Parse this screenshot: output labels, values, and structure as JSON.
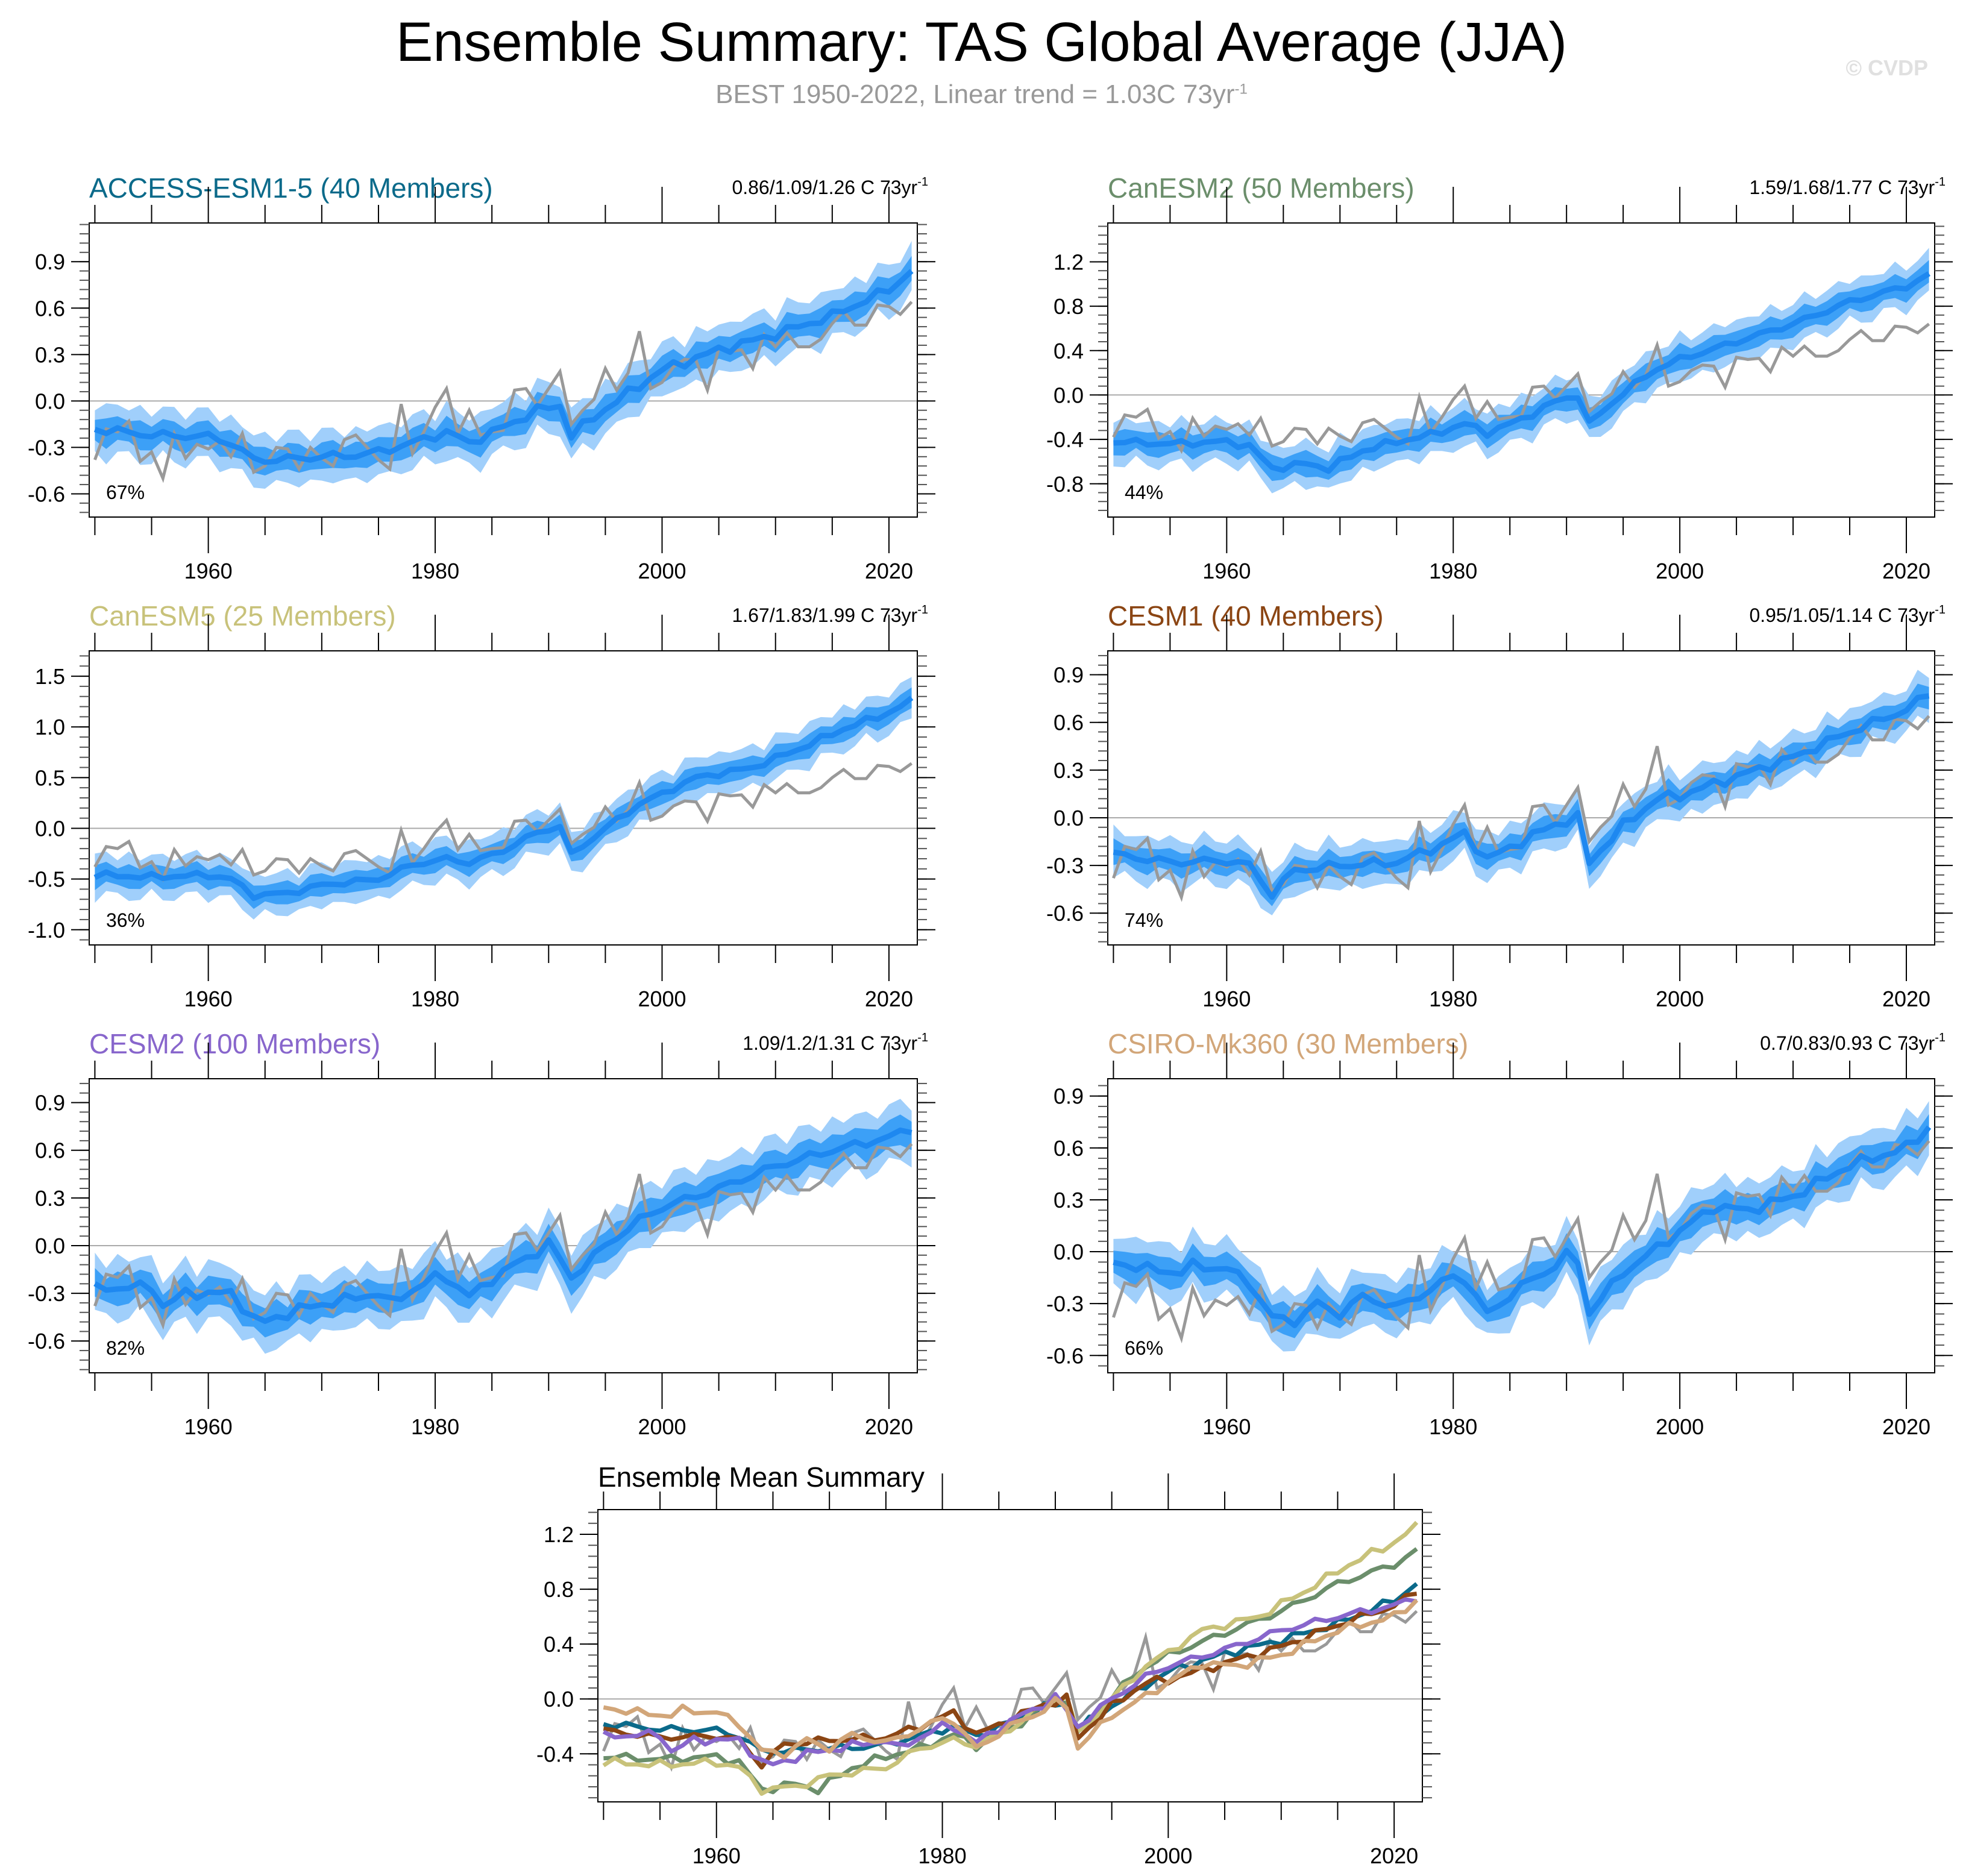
{
  "title": "Ensemble Summary: TAS Global Average (JJA)",
  "subtitle": "BEST 1950-2022, Linear trend = 1.03C 73yr",
  "subtitle_sup": "-1",
  "copyright": "© CVDP",
  "colors": {
    "band_outer": "#a0cffb",
    "band_inner": "#3ca0f7",
    "mean": "#1e88f0",
    "obs": "#999999",
    "zero_line": "#aaaaaa"
  },
  "chart_data": [
    {
      "type": "area",
      "id": "access",
      "title": "ACCESS-ESM1-5 (40 Members)",
      "title_color": "#0b6a8a",
      "trend_label": "0.86/1.09/1.26 C 73yr",
      "trend_sup": "-1",
      "percent_label": "67%",
      "xlim": [
        1949.5,
        2022.5
      ],
      "ylim": [
        -0.75,
        1.15
      ],
      "yticks": [
        -0.6,
        -0.3,
        0.0,
        0.3,
        0.6,
        0.9
      ],
      "ytick_labels": [
        "-0.6",
        "-0.3",
        "0.0",
        "0.3",
        "0.6",
        "0.9"
      ],
      "xticks": [
        1960,
        1980,
        2000,
        2020
      ],
      "mean_keypoints": [
        [
          1950,
          -0.18
        ],
        [
          1955,
          -0.22
        ],
        [
          1960,
          -0.23
        ],
        [
          1962,
          -0.27
        ],
        [
          1964,
          -0.38
        ],
        [
          1966,
          -0.38
        ],
        [
          1970,
          -0.36
        ],
        [
          1973,
          -0.35
        ],
        [
          1975,
          -0.33
        ],
        [
          1978,
          -0.27
        ],
        [
          1981,
          -0.2
        ],
        [
          1983,
          -0.27
        ],
        [
          1986,
          -0.17
        ],
        [
          1989,
          -0.06
        ],
        [
          1991,
          -0.03
        ],
        [
          1992,
          -0.22
        ],
        [
          1995,
          -0.05
        ],
        [
          1998,
          0.1
        ],
        [
          2000,
          0.2
        ],
        [
          2005,
          0.33
        ],
        [
          2010,
          0.43
        ],
        [
          2015,
          0.55
        ],
        [
          2020,
          0.72
        ],
        [
          2022,
          0.84
        ]
      ],
      "inner_halfwidth": 0.08,
      "outer_halfwidth": 0.16
    },
    {
      "type": "area",
      "id": "canesm2",
      "title": "CanESM2 (50 Members)",
      "title_color": "#6b8e6b",
      "trend_label": "1.59/1.68/1.77 C 73yr",
      "trend_sup": "-1",
      "percent_label": "44%",
      "xlim": [
        1949.5,
        2022.5
      ],
      "ylim": [
        -1.1,
        1.55
      ],
      "yticks": [
        -0.8,
        -0.4,
        0.0,
        0.4,
        0.8,
        1.2
      ],
      "ytick_labels": [
        "-0.8",
        "-0.4",
        "0.0",
        "0.4",
        "0.8",
        "1.2"
      ],
      "xticks": [
        1960,
        1980,
        2000,
        2020
      ],
      "mean_keypoints": [
        [
          1950,
          -0.42
        ],
        [
          1955,
          -0.44
        ],
        [
          1960,
          -0.42
        ],
        [
          1962,
          -0.46
        ],
        [
          1964,
          -0.66
        ],
        [
          1967,
          -0.62
        ],
        [
          1969,
          -0.66
        ],
        [
          1972,
          -0.5
        ],
        [
          1975,
          -0.42
        ],
        [
          1978,
          -0.36
        ],
        [
          1981,
          -0.26
        ],
        [
          1983,
          -0.34
        ],
        [
          1986,
          -0.22
        ],
        [
          1989,
          -0.06
        ],
        [
          1991,
          0.0
        ],
        [
          1992,
          -0.26
        ],
        [
          1995,
          0.02
        ],
        [
          1998,
          0.24
        ],
        [
          2000,
          0.32
        ],
        [
          2005,
          0.48
        ],
        [
          2010,
          0.64
        ],
        [
          2015,
          0.84
        ],
        [
          2020,
          0.98
        ],
        [
          2022,
          1.08
        ]
      ],
      "inner_halfwidth": 0.1,
      "outer_halfwidth": 0.19
    },
    {
      "type": "area",
      "id": "canesm5",
      "title": "CanESM5 (25 Members)",
      "title_color": "#c8c27a",
      "trend_label": "1.67/1.83/1.99 C 73yr",
      "trend_sup": "-1",
      "percent_label": "36%",
      "xlim": [
        1949.5,
        2022.5
      ],
      "ylim": [
        -1.15,
        1.75
      ],
      "yticks": [
        -1.0,
        -0.5,
        0.0,
        0.5,
        1.0,
        1.5
      ],
      "ytick_labels": [
        "-1.0",
        "-0.5",
        "0.0",
        "0.5",
        "1.0",
        "1.5"
      ],
      "xticks": [
        1960,
        1980,
        2000,
        2020
      ],
      "mean_keypoints": [
        [
          1950,
          -0.46
        ],
        [
          1955,
          -0.48
        ],
        [
          1960,
          -0.46
        ],
        [
          1962,
          -0.5
        ],
        [
          1964,
          -0.66
        ],
        [
          1967,
          -0.64
        ],
        [
          1970,
          -0.56
        ],
        [
          1975,
          -0.5
        ],
        [
          1978,
          -0.36
        ],
        [
          1981,
          -0.3
        ],
        [
          1983,
          -0.34
        ],
        [
          1986,
          -0.22
        ],
        [
          1989,
          -0.04
        ],
        [
          1991,
          0.02
        ],
        [
          1992,
          -0.26
        ],
        [
          1995,
          0.0
        ],
        [
          1998,
          0.24
        ],
        [
          2000,
          0.34
        ],
        [
          2003,
          0.5
        ],
        [
          2008,
          0.6
        ],
        [
          2012,
          0.78
        ],
        [
          2016,
          0.98
        ],
        [
          2020,
          1.14
        ],
        [
          2022,
          1.26
        ]
      ],
      "inner_halfwidth": 0.1,
      "outer_halfwidth": 0.2
    },
    {
      "type": "area",
      "id": "cesm1",
      "title": "CESM1 (40 Members)",
      "title_color": "#8b4513",
      "trend_label": "0.95/1.05/1.14 C 73yr",
      "trend_sup": "-1",
      "percent_label": "74%",
      "xlim": [
        1949.5,
        2022.5
      ],
      "ylim": [
        -0.8,
        1.05
      ],
      "yticks": [
        -0.6,
        -0.3,
        0.0,
        0.3,
        0.6,
        0.9
      ],
      "ytick_labels": [
        "-0.6",
        "-0.3",
        "0.0",
        "0.3",
        "0.6",
        "0.9"
      ],
      "xticks": [
        1960,
        1980,
        2000,
        2020
      ],
      "mean_keypoints": [
        [
          1950,
          -0.23
        ],
        [
          1955,
          -0.28
        ],
        [
          1960,
          -0.27
        ],
        [
          1962,
          -0.3
        ],
        [
          1964,
          -0.48
        ],
        [
          1966,
          -0.33
        ],
        [
          1970,
          -0.3
        ],
        [
          1975,
          -0.28
        ],
        [
          1978,
          -0.2
        ],
        [
          1981,
          -0.1
        ],
        [
          1983,
          -0.26
        ],
        [
          1986,
          -0.15
        ],
        [
          1989,
          -0.04
        ],
        [
          1991,
          0.0
        ],
        [
          1992,
          -0.28
        ],
        [
          1995,
          -0.05
        ],
        [
          1998,
          0.12
        ],
        [
          2000,
          0.14
        ],
        [
          2005,
          0.26
        ],
        [
          2010,
          0.38
        ],
        [
          2015,
          0.54
        ],
        [
          2020,
          0.68
        ],
        [
          2022,
          0.78
        ]
      ],
      "inner_halfwidth": 0.07,
      "outer_halfwidth": 0.14
    },
    {
      "type": "area",
      "id": "cesm2",
      "title": "CESM2 (100 Members)",
      "title_color": "#8866cc",
      "trend_label": "1.09/1.2/1.31 C 73yr",
      "trend_sup": "-1",
      "percent_label": "82%",
      "xlim": [
        1949.5,
        2022.5
      ],
      "ylim": [
        -0.8,
        1.05
      ],
      "yticks": [
        -0.6,
        -0.3,
        0.0,
        0.3,
        0.6,
        0.9
      ],
      "ytick_labels": [
        "-0.6",
        "-0.3",
        "0.0",
        "0.3",
        "0.6",
        "0.9"
      ],
      "xticks": [
        1960,
        1980,
        2000,
        2020
      ],
      "mean_keypoints": [
        [
          1950,
          -0.27
        ],
        [
          1954,
          -0.26
        ],
        [
          1955,
          -0.26
        ],
        [
          1956,
          -0.38
        ],
        [
          1958,
          -0.3
        ],
        [
          1960,
          -0.3
        ],
        [
          1962,
          -0.3
        ],
        [
          1964,
          -0.46
        ],
        [
          1965,
          -0.48
        ],
        [
          1968,
          -0.4
        ],
        [
          1972,
          -0.34
        ],
        [
          1975,
          -0.3
        ],
        [
          1976,
          -0.36
        ],
        [
          1980,
          -0.2
        ],
        [
          1981,
          -0.2
        ],
        [
          1983,
          -0.32
        ],
        [
          1986,
          -0.16
        ],
        [
          1989,
          -0.04
        ],
        [
          1990,
          0.02
        ],
        [
          1992,
          -0.2
        ],
        [
          1995,
          0.0
        ],
        [
          1998,
          0.16
        ],
        [
          2000,
          0.24
        ],
        [
          2005,
          0.36
        ],
        [
          2010,
          0.5
        ],
        [
          2015,
          0.6
        ],
        [
          2020,
          0.68
        ],
        [
          2022,
          0.74
        ]
      ],
      "inner_halfwidth": 0.09,
      "outer_halfwidth": 0.18
    },
    {
      "type": "area",
      "id": "csiro",
      "title": "CSIRO-Mk360 (30 Members)",
      "title_color": "#d2a679",
      "trend_label": "0.7/0.83/0.93 C 73yr",
      "trend_sup": "-1",
      "percent_label": "66%",
      "xlim": [
        1949.5,
        2022.5
      ],
      "ylim": [
        -0.7,
        1.0
      ],
      "yticks": [
        -0.6,
        -0.3,
        0.0,
        0.3,
        0.6,
        0.9
      ],
      "ytick_labels": [
        "-0.6",
        "-0.3",
        "0.0",
        "0.3",
        "0.6",
        "0.9"
      ],
      "xticks": [
        1960,
        1980,
        2000,
        2020
      ],
      "mean_keypoints": [
        [
          1950,
          -0.06
        ],
        [
          1953,
          -0.1
        ],
        [
          1956,
          -0.12
        ],
        [
          1957,
          -0.08
        ],
        [
          1960,
          -0.1
        ],
        [
          1962,
          -0.18
        ],
        [
          1964,
          -0.38
        ],
        [
          1966,
          -0.4
        ],
        [
          1968,
          -0.3
        ],
        [
          1970,
          -0.36
        ],
        [
          1972,
          -0.26
        ],
        [
          1975,
          -0.32
        ],
        [
          1978,
          -0.22
        ],
        [
          1980,
          -0.14
        ],
        [
          1981,
          -0.16
        ],
        [
          1983,
          -0.36
        ],
        [
          1986,
          -0.2
        ],
        [
          1989,
          -0.08
        ],
        [
          1990,
          -0.02
        ],
        [
          1991,
          -0.06
        ],
        [
          1992,
          -0.35
        ],
        [
          1995,
          -0.12
        ],
        [
          1998,
          0.02
        ],
        [
          2000,
          0.12
        ],
        [
          2003,
          0.26
        ],
        [
          2006,
          0.24
        ],
        [
          2010,
          0.32
        ],
        [
          2015,
          0.5
        ],
        [
          2020,
          0.6
        ],
        [
          2022,
          0.72
        ]
      ],
      "inner_halfwidth": 0.08,
      "outer_halfwidth": 0.16
    },
    {
      "type": "line",
      "id": "summary",
      "title": "Ensemble Mean Summary",
      "title_color": "#000000",
      "xlim": [
        1949.5,
        2022.5
      ],
      "ylim": [
        -0.75,
        1.38
      ],
      "yticks": [
        -0.4,
        0.0,
        0.4,
        0.8,
        1.2
      ],
      "ytick_labels": [
        "-0.4",
        "0.0",
        "0.4",
        "0.8",
        "1.2"
      ],
      "xticks": [
        1960,
        1980,
        2000,
        2020
      ],
      "series_from": [
        "access",
        "canesm2",
        "canesm5",
        "cesm1",
        "cesm2",
        "csiro"
      ]
    }
  ],
  "obs": {
    "name": "BEST",
    "years_start": 1950,
    "values": [
      -0.38,
      -0.18,
      -0.2,
      -0.13,
      -0.39,
      -0.33,
      -0.5,
      -0.21,
      -0.37,
      -0.28,
      -0.31,
      -0.26,
      -0.36,
      -0.21,
      -0.46,
      -0.42,
      -0.3,
      -0.31,
      -0.44,
      -0.3,
      -0.37,
      -0.42,
      -0.25,
      -0.22,
      -0.3,
      -0.38,
      -0.44,
      -0.02,
      -0.34,
      -0.2,
      -0.04,
      0.08,
      -0.21,
      -0.06,
      -0.22,
      -0.2,
      -0.19,
      0.07,
      0.08,
      -0.03,
      0.08,
      0.19,
      -0.15,
      -0.06,
      0.01,
      0.21,
      0.07,
      0.18,
      0.45,
      0.08,
      0.12,
      0.22,
      0.27,
      0.26,
      0.07,
      0.34,
      0.32,
      0.33,
      0.21,
      0.43,
      0.35,
      0.44,
      0.35,
      0.35,
      0.4,
      0.5,
      0.58,
      0.49,
      0.49,
      0.62,
      0.61,
      0.56,
      0.64
    ]
  }
}
